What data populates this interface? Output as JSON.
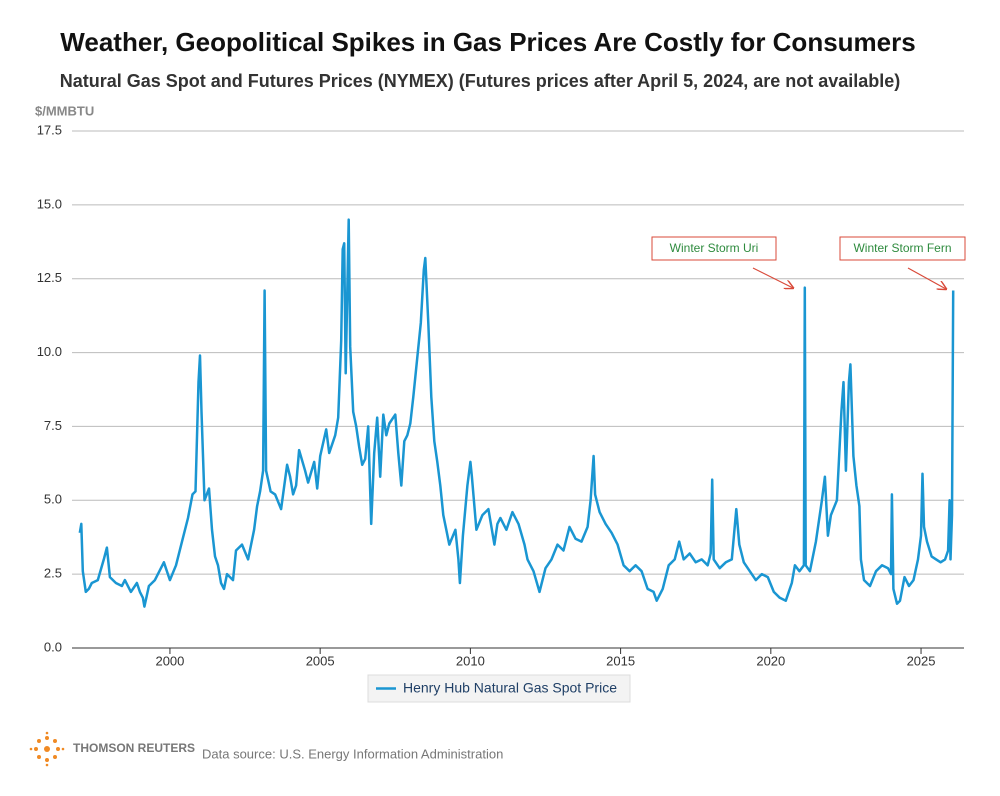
{
  "chart_data": {
    "type": "line",
    "title": "Weather, Geopolitical Spikes in Gas Prices Are Costly for Consumers",
    "subtitle": "Natural Gas Spot and Futures Prices (NYMEX) (Futures prices after April 5, 2024, are not available)",
    "y_label": "$/MMBTU",
    "xlim": [
      1996.74,
      2026.43
    ],
    "xticks": [
      2000,
      2005,
      2010,
      2015,
      2020,
      2025
    ],
    "ylim": [
      0,
      17.5
    ],
    "yticks": [
      {
        "value": 0,
        "label": "0.0"
      },
      2.5,
      {
        "value": 5,
        "label": "5.0"
      },
      7.5,
      {
        "value": 10,
        "label": "10.0"
      },
      12.5,
      {
        "value": 15,
        "label": "15.0"
      },
      17.5
    ],
    "grid": true,
    "legend": "bottom",
    "annotations": [
      "Winter Storm Uri",
      "Winter Storm Fern"
    ],
    "source": "Data source: U.S. Energy Information Administration",
    "logo": "THOMSON REUTERS",
    "x": [
      1997.0,
      1997.05,
      1997.1,
      1997.2,
      1997.3,
      1997.4,
      1997.6,
      1997.8,
      1997.9,
      1998.0,
      1998.2,
      1998.4,
      1998.5,
      1998.7,
      1998.9,
      1999.0,
      1999.1,
      1999.15,
      1999.3,
      1999.5,
      1999.7,
      1999.8,
      2000.0,
      2000.2,
      2000.4,
      2000.6,
      2000.75,
      2000.85,
      2000.95,
      2001.0,
      2001.05,
      2001.15,
      2001.3,
      2001.4,
      2001.5,
      2001.6,
      2001.7,
      2001.8,
      2001.9,
      2002.1,
      2002.2,
      2002.4,
      2002.6,
      2002.8,
      2002.9,
      2003.0,
      2003.1,
      2003.15,
      2003.2,
      2003.35,
      2003.5,
      2003.7,
      2003.9,
      2004.0,
      2004.1,
      2004.2,
      2004.3,
      2004.5,
      2004.6,
      2004.8,
      2004.9,
      2005.0,
      2005.2,
      2005.3,
      2005.5,
      2005.6,
      2005.7,
      2005.75,
      2005.8,
      2005.85,
      2005.95,
      2006.0,
      2006.1,
      2006.2,
      2006.3,
      2006.4,
      2006.5,
      2006.6,
      2006.7,
      2006.8,
      2006.9,
      2007.0,
      2007.1,
      2007.2,
      2007.3,
      2007.5,
      2007.6,
      2007.7,
      2007.8,
      2007.9,
      2008.0,
      2008.1,
      2008.2,
      2008.35,
      2008.45,
      2008.5,
      2008.6,
      2008.7,
      2008.8,
      2008.9,
      2009.0,
      2009.1,
      2009.2,
      2009.3,
      2009.5,
      2009.6,
      2009.65,
      2009.75,
      2009.9,
      2010.0,
      2010.05,
      2010.2,
      2010.4,
      2010.6,
      2010.8,
      2010.9,
      2011.0,
      2011.2,
      2011.4,
      2011.6,
      2011.8,
      2011.9,
      2012.1,
      2012.3,
      2012.5,
      2012.7,
      2012.9,
      2013.1,
      2013.3,
      2013.5,
      2013.7,
      2013.9,
      2014.0,
      2014.1,
      2014.15,
      2014.3,
      2014.5,
      2014.7,
      2014.9,
      2015.1,
      2015.3,
      2015.5,
      2015.7,
      2015.9,
      2016.1,
      2016.2,
      2016.4,
      2016.6,
      2016.8,
      2016.95,
      2017.1,
      2017.3,
      2017.5,
      2017.7,
      2017.9,
      2018.0,
      2018.05,
      2018.1,
      2018.3,
      2018.5,
      2018.7,
      2018.85,
      2018.95,
      2019.1,
      2019.3,
      2019.5,
      2019.7,
      2019.9,
      2020.1,
      2020.3,
      2020.5,
      2020.7,
      2020.8,
      2020.95,
      2021.1,
      2021.13,
      2021.16,
      2021.3,
      2021.5,
      2021.7,
      2021.8,
      2021.9,
      2022.0,
      2022.2,
      2022.35,
      2022.42,
      2022.5,
      2022.6,
      2022.65,
      2022.75,
      2022.85,
      2022.95,
      2023.0,
      2023.1,
      2023.3,
      2023.5,
      2023.7,
      2023.9,
      2024.0,
      2024.03,
      2024.08,
      2024.2,
      2024.3,
      2024.45,
      2024.6,
      2024.75,
      2024.9,
      2025.0,
      2025.05,
      2025.1,
      2025.2,
      2025.35,
      2025.5,
      2025.65,
      2025.8,
      2025.9,
      2025.95,
      2025.98,
      2026.03,
      2026.07
    ],
    "series": [
      {
        "name": "Henry Hub Natural Gas Spot Price",
        "color": "#1a96d2",
        "values": [
          3.9,
          4.2,
          2.6,
          1.9,
          2.0,
          2.2,
          2.3,
          3.0,
          3.4,
          2.4,
          2.2,
          2.1,
          2.3,
          1.9,
          2.2,
          1.9,
          1.7,
          1.4,
          2.1,
          2.3,
          2.7,
          2.9,
          2.3,
          2.8,
          3.6,
          4.4,
          5.2,
          5.3,
          9.0,
          9.9,
          8.0,
          5.0,
          5.4,
          4.0,
          3.1,
          2.8,
          2.2,
          2.0,
          2.5,
          2.3,
          3.3,
          3.5,
          3.0,
          4.0,
          4.8,
          5.3,
          6.0,
          12.1,
          6.0,
          5.3,
          5.2,
          4.7,
          6.2,
          5.8,
          5.2,
          5.5,
          6.7,
          6.0,
          5.6,
          6.3,
          5.4,
          6.5,
          7.4,
          6.6,
          7.2,
          7.8,
          10.4,
          13.5,
          13.7,
          9.3,
          14.5,
          10.2,
          8.0,
          7.5,
          6.8,
          6.2,
          6.4,
          7.5,
          4.2,
          6.6,
          7.8,
          5.8,
          7.9,
          7.2,
          7.6,
          7.9,
          6.6,
          5.5,
          7.0,
          7.2,
          7.6,
          8.5,
          9.5,
          11.0,
          12.8,
          13.2,
          11.0,
          8.5,
          7.0,
          6.3,
          5.5,
          4.5,
          4.0,
          3.5,
          4.0,
          3.0,
          2.2,
          3.8,
          5.5,
          6.3,
          5.8,
          4.0,
          4.5,
          4.7,
          3.5,
          4.2,
          4.4,
          4.0,
          4.6,
          4.2,
          3.5,
          3.0,
          2.6,
          1.9,
          2.7,
          3.0,
          3.5,
          3.3,
          4.1,
          3.7,
          3.6,
          4.1,
          5.0,
          6.5,
          5.2,
          4.6,
          4.2,
          3.9,
          3.5,
          2.8,
          2.6,
          2.8,
          2.6,
          2.0,
          1.9,
          1.6,
          2.0,
          2.8,
          3.0,
          3.6,
          3.0,
          3.2,
          2.9,
          3.0,
          2.8,
          3.2,
          5.7,
          3.0,
          2.7,
          2.9,
          3.0,
          4.7,
          3.5,
          2.9,
          2.6,
          2.3,
          2.5,
          2.4,
          1.9,
          1.7,
          1.6,
          2.2,
          2.8,
          2.6,
          2.8,
          12.2,
          2.8,
          2.6,
          3.6,
          5.0,
          5.8,
          3.8,
          4.5,
          5.0,
          8.0,
          9.0,
          6.0,
          9.0,
          9.6,
          6.5,
          5.5,
          4.8,
          3.0,
          2.3,
          2.1,
          2.6,
          2.8,
          2.7,
          2.5,
          5.2,
          2.0,
          1.5,
          1.6,
          2.4,
          2.1,
          2.3,
          3.0,
          3.8,
          5.9,
          4.1,
          3.6,
          3.1,
          3.0,
          2.9,
          3.0,
          3.3,
          5.0,
          3.0,
          4.5,
          12.1
        ]
      }
    ]
  }
}
